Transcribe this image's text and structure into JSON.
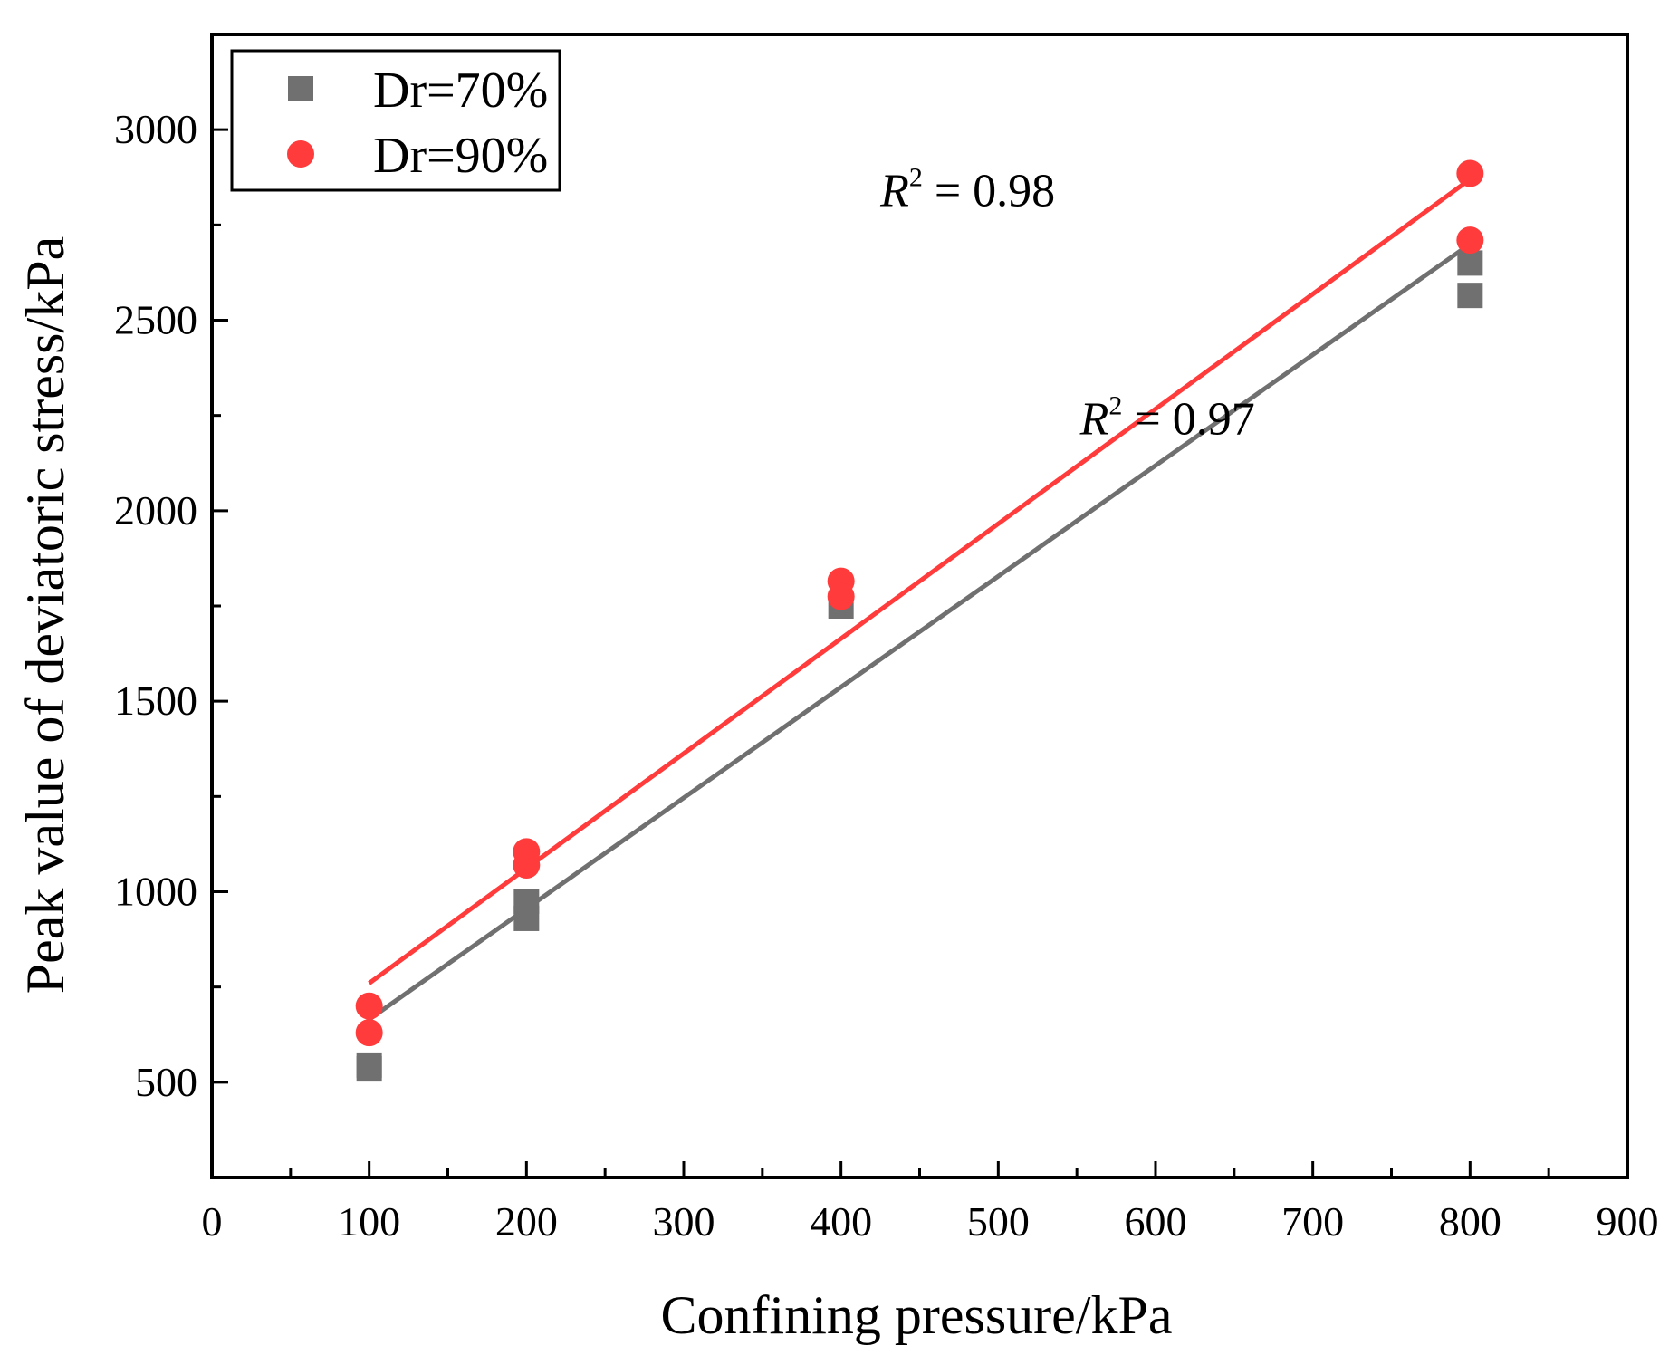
{
  "chart_data": {
    "type": "scatter",
    "xlabel": "Confining pressure/kPa",
    "ylabel": "Peak value of deviatoric stress/kPa",
    "xlim": [
      0,
      900
    ],
    "ylim": [
      250,
      3250
    ],
    "x_ticks": [
      0,
      100,
      200,
      300,
      400,
      500,
      600,
      700,
      800,
      900
    ],
    "y_ticks": [
      500,
      1000,
      1500,
      2000,
      2500,
      3000
    ],
    "x_tick_labels": [
      "0",
      "100",
      "200",
      "300",
      "400",
      "500",
      "600",
      "700",
      "800",
      "900"
    ],
    "y_tick_labels": [
      "500",
      "1000",
      "1500",
      "2000",
      "2500",
      "3000"
    ],
    "grid": false,
    "legend_position": "top-left",
    "series": [
      {
        "name": "Dr=70%",
        "marker": "square",
        "color": "#707070",
        "points": [
          [
            100,
            545
          ],
          [
            100,
            535
          ],
          [
            200,
            975
          ],
          [
            200,
            930
          ],
          [
            400,
            1750
          ],
          [
            800,
            2650
          ],
          [
            800,
            2565
          ]
        ],
        "fit_line": {
          "x": [
            100,
            800
          ],
          "y": [
            665,
            2700
          ]
        },
        "r2_label": "R",
        "r2_value": " = 0.97"
      },
      {
        "name": "Dr=90%",
        "marker": "circle",
        "color": "#ff3b3b",
        "points": [
          [
            100,
            700
          ],
          [
            100,
            630
          ],
          [
            200,
            1105
          ],
          [
            200,
            1070
          ],
          [
            400,
            1815
          ],
          [
            400,
            1775
          ],
          [
            800,
            2885
          ],
          [
            800,
            2710
          ]
        ],
        "fit_line": {
          "x": [
            100,
            800
          ],
          "y": [
            760,
            2870
          ]
        },
        "r2_label": "R",
        "r2_value": " = 0.98"
      }
    ],
    "annotations": [
      {
        "series": "Dr=90%",
        "text_var": "R",
        "text_sup": "2",
        "text_rest": " = 0.98",
        "x": 425,
        "y": 2800
      },
      {
        "series": "Dr=70%",
        "text_var": "R",
        "text_sup": "2",
        "text_rest": " = 0.97",
        "x": 552,
        "y": 2200
      }
    ]
  }
}
